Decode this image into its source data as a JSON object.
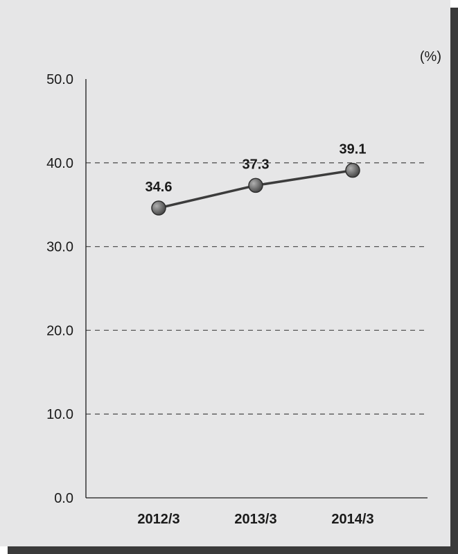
{
  "chart_data": {
    "type": "line",
    "unit": "(%)",
    "categories": [
      "2012/3",
      "2013/3",
      "2014/3"
    ],
    "series": [
      {
        "values": [
          34.6,
          37.3,
          39.1
        ]
      }
    ],
    "data_labels": [
      "34.6",
      "37.3",
      "39.1"
    ],
    "ylim": [
      0,
      50
    ],
    "yticks": [
      "0.0",
      "10.0",
      "20.0",
      "30.0",
      "40.0",
      "50.0"
    ],
    "grid": "dashed horizontal",
    "legend": "none"
  },
  "colors": {
    "background": "#e6e6e7",
    "shadow": "#3a3a3a",
    "line": "#3c3c3c",
    "marker": "#6e6e6e",
    "grid": "#555555",
    "axis": "#1a1a1a"
  }
}
